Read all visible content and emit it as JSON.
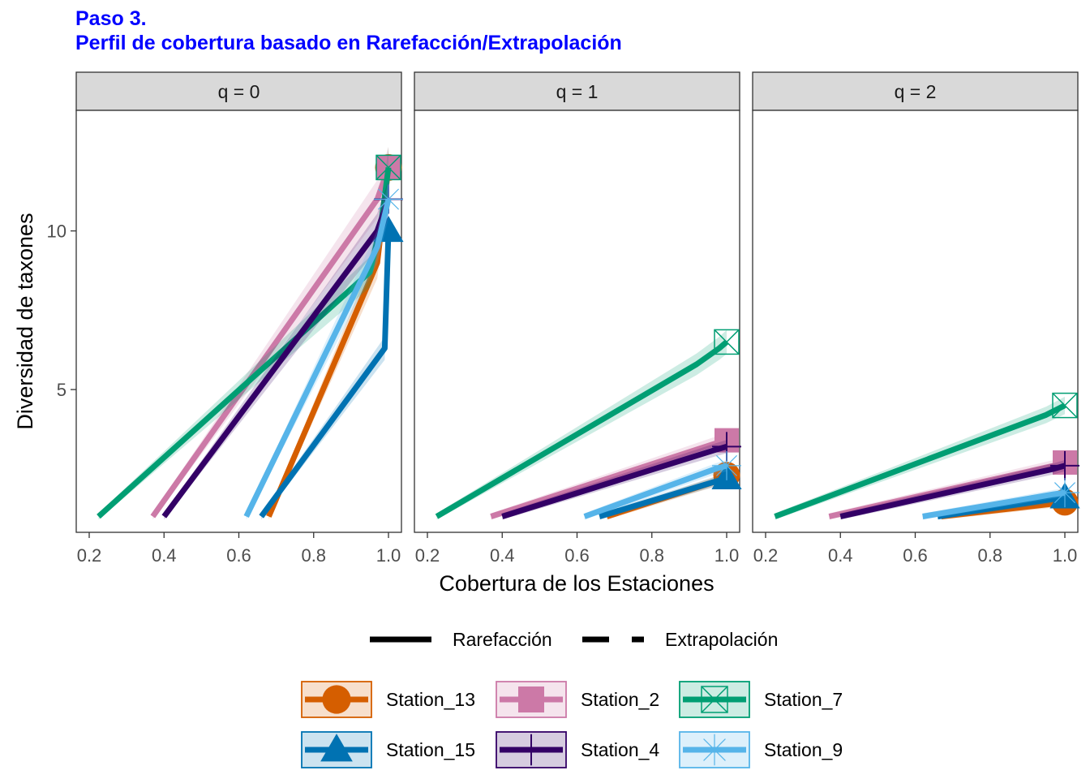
{
  "title_line1": "Paso 3.",
  "title_line2": "Perfil de cobertura basado en Rarefacción/Extrapolación",
  "chart_data": {
    "type": "line",
    "xlabel": "Cobertura de los Estaciones",
    "ylabel": "Diversidad de taxones",
    "xlim": [
      0.2,
      1.0
    ],
    "ylim": [
      0.5,
      13.8
    ],
    "x_ticks": [
      0.2,
      0.4,
      0.6,
      0.8,
      1.0
    ],
    "x_tick_labels": [
      "0.2",
      "0.4",
      "0.6",
      "0.8",
      "1.0"
    ],
    "y_ticks": [
      5,
      10
    ],
    "y_tick_labels": [
      "5",
      "10"
    ],
    "grid": false,
    "facet_titles": [
      "q = 0",
      "q = 1",
      "q = 2"
    ],
    "linetype_legend": {
      "rarefaction": "Rarefacción",
      "extrapolation": "Extrapolación"
    },
    "series": [
      {
        "name": "Station_13",
        "color": "#D55E00",
        "shape": "circle",
        "panels": [
          {
            "points": [
              [
                0.68,
                1.0
              ],
              [
                0.97,
                9.0
              ],
              [
                1.0,
                12.0
              ]
            ],
            "observed": [
              1.0,
              12.0
            ]
          },
          {
            "points": [
              [
                0.68,
                1.0
              ],
              [
                0.97,
                2.1
              ],
              [
                1.0,
                2.3
              ]
            ],
            "observed": [
              1.0,
              2.3
            ]
          },
          {
            "points": [
              [
                0.67,
                1.0
              ],
              [
                0.97,
                1.4
              ],
              [
                1.0,
                1.45
              ]
            ],
            "observed": [
              1.0,
              1.45
            ]
          }
        ]
      },
      {
        "name": "Station_2",
        "color": "#CC79A7",
        "shape": "square",
        "panels": [
          {
            "points": [
              [
                0.37,
                1.0
              ],
              [
                0.97,
                11.0
              ],
              [
                1.0,
                12.0
              ]
            ],
            "observed": [
              1.0,
              12.0
            ]
          },
          {
            "points": [
              [
                0.37,
                1.0
              ],
              [
                0.97,
                3.3
              ],
              [
                1.0,
                3.4
              ]
            ],
            "observed": [
              1.0,
              3.4
            ]
          },
          {
            "points": [
              [
                0.37,
                1.0
              ],
              [
                0.97,
                2.6
              ],
              [
                1.0,
                2.7
              ]
            ],
            "observed": [
              1.0,
              2.7
            ]
          }
        ]
      },
      {
        "name": "Station_7",
        "color": "#009E73",
        "shape": "square-cross",
        "panels": [
          {
            "points": [
              [
                0.225,
                1.0
              ],
              [
                0.95,
                8.7
              ],
              [
                0.98,
                10.2
              ],
              [
                1.0,
                12.0
              ]
            ],
            "observed": [
              1.0,
              12.0
            ]
          },
          {
            "points": [
              [
                0.225,
                1.0
              ],
              [
                0.92,
                5.8
              ],
              [
                0.98,
                6.3
              ],
              [
                1.0,
                6.5
              ]
            ],
            "observed": [
              1.0,
              6.5
            ]
          },
          {
            "points": [
              [
                0.225,
                1.0
              ],
              [
                0.95,
                4.2
              ],
              [
                1.0,
                4.5
              ]
            ],
            "observed": [
              1.0,
              4.5
            ]
          }
        ]
      },
      {
        "name": "Station_15",
        "color": "#0072B2",
        "shape": "triangle",
        "panels": [
          {
            "points": [
              [
                0.66,
                1.0
              ],
              [
                0.99,
                6.3
              ],
              [
                1.0,
                10.0
              ]
            ],
            "observed": [
              1.0,
              10.0
            ]
          },
          {
            "points": [
              [
                0.66,
                1.0
              ],
              [
                0.97,
                2.1
              ],
              [
                1.0,
                2.2
              ]
            ],
            "observed": [
              1.0,
              2.2
            ]
          },
          {
            "points": [
              [
                0.66,
                1.0
              ],
              [
                0.97,
                1.55
              ],
              [
                1.0,
                1.6
              ]
            ],
            "observed": [
              1.0,
              1.6
            ]
          }
        ]
      },
      {
        "name": "Station_4",
        "color": "#330066",
        "shape": "plus",
        "panels": [
          {
            "points": [
              [
                0.4,
                1.0
              ],
              [
                0.97,
                10.0
              ],
              [
                1.0,
                11.0
              ]
            ],
            "observed": [
              1.0,
              11.0
            ]
          },
          {
            "points": [
              [
                0.4,
                1.0
              ],
              [
                0.97,
                3.1
              ],
              [
                1.0,
                3.2
              ]
            ],
            "observed": [
              1.0,
              3.2
            ]
          },
          {
            "points": [
              [
                0.4,
                1.0
              ],
              [
                0.97,
                2.5
              ],
              [
                1.0,
                2.6
              ]
            ],
            "observed": [
              1.0,
              2.6
            ]
          }
        ]
      },
      {
        "name": "Station_9",
        "color": "#56B4E9",
        "shape": "asterisk",
        "panels": [
          {
            "points": [
              [
                0.62,
                1.0
              ],
              [
                0.97,
                9.5
              ],
              [
                1.0,
                11.0
              ]
            ],
            "observed": [
              1.0,
              11.0
            ]
          },
          {
            "points": [
              [
                0.62,
                1.0
              ],
              [
                0.97,
                2.5
              ],
              [
                1.0,
                2.6
              ]
            ],
            "observed": [
              1.0,
              2.6
            ]
          },
          {
            "points": [
              [
                0.62,
                1.0
              ],
              [
                0.97,
                1.7
              ],
              [
                1.0,
                1.75
              ]
            ],
            "observed": [
              1.0,
              1.75
            ]
          }
        ]
      }
    ]
  }
}
